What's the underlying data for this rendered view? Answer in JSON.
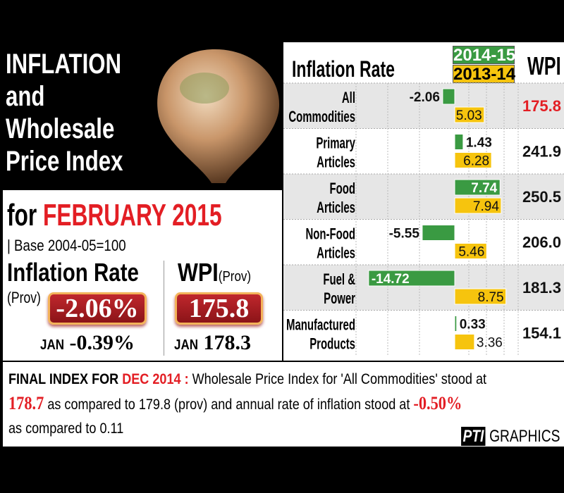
{
  "header": {
    "title_lines": [
      "INFLATION",
      "and",
      "Wholesale",
      "Price Index"
    ],
    "for_prefix": "for",
    "month": "FEBRUARY 2015",
    "base": "| Base 2004-05=100"
  },
  "summary": {
    "inflation_label": "Inflation Rate",
    "inflation_prov": "(Prov)",
    "inflation_value": "-2.06%",
    "inflation_jan_label": "JAN",
    "inflation_jan_value": "-0.39%",
    "wpi_label": "WPI",
    "wpi_prov": "(Prov)",
    "wpi_value": "175.8",
    "wpi_jan_label": "JAN",
    "wpi_jan_value": "178.3"
  },
  "footer": {
    "lead": "FINAL INDEX FOR",
    "lead_month": "DEC 2014 :",
    "text1": "Wholesale Price Index for 'All Commodities' stood at",
    "value1": "178.7",
    "text2": "as compared to 179.8 (prov) and annual rate of inflation stood at",
    "value2": "-0.50%",
    "text3": "as compared to 0.11",
    "credit_logo": "PTI",
    "credit": "GRAPHICS"
  },
  "chart_data": {
    "type": "bar",
    "orientation": "horizontal",
    "title": "Inflation Rate",
    "wpi_header": "WPI",
    "categories": [
      [
        "All",
        "Commodities"
      ],
      [
        "Primary",
        "Articles"
      ],
      [
        "Food",
        "Articles"
      ],
      [
        "Non-Food",
        "Articles"
      ],
      [
        "Fuel &",
        "Power"
      ],
      [
        "Manufactured",
        "Products"
      ]
    ],
    "series": [
      {
        "name": "2014-15",
        "color": "#3a9a42",
        "values": [
          -2.06,
          1.43,
          7.74,
          -5.55,
          -14.72,
          0.33
        ]
      },
      {
        "name": "2013-14",
        "color": "#f6c40e",
        "values": [
          5.03,
          6.28,
          7.94,
          5.46,
          8.75,
          3.36
        ]
      }
    ],
    "wpi": [
      "175.8",
      "241.9",
      "250.5",
      "206.0",
      "181.3",
      "154.1"
    ],
    "wpi_highlight_color": "#e31e24",
    "xlim": [
      -17,
      10
    ],
    "grid": true
  }
}
